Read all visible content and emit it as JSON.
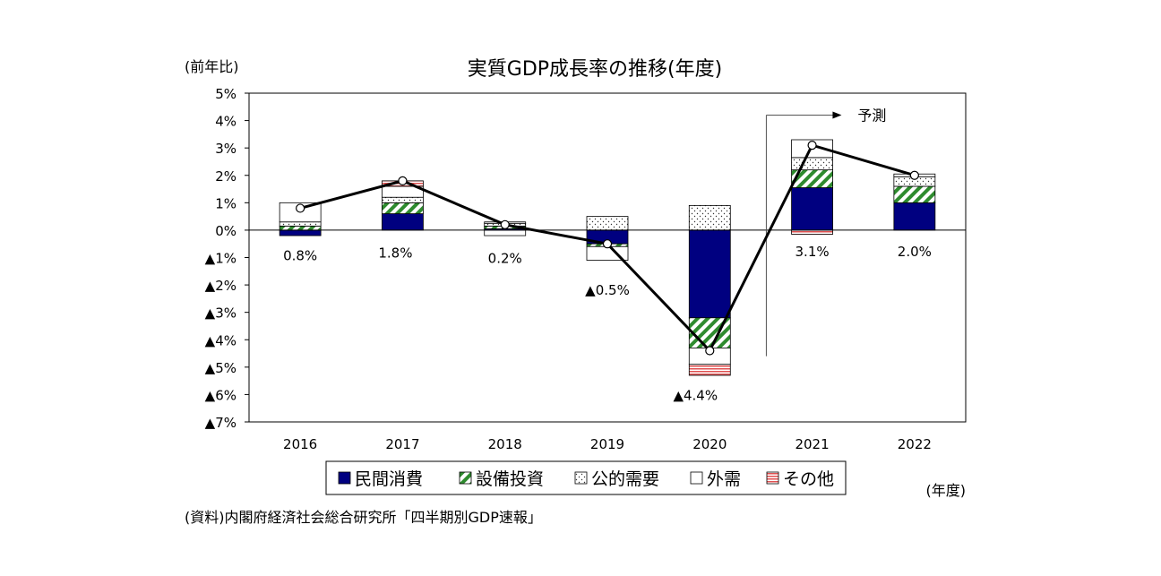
{
  "chart_data": {
    "type": "bar",
    "title": "実質GDP成長率の推移(年度)",
    "ylabel": "(前年比)",
    "xlabel": "(年度)",
    "source": "(資料)内閣府経済社会総合研究所「四半期別GDP速報」",
    "forecast_label": "予測",
    "forecast_from": "2021",
    "ylim": [
      -7,
      5
    ],
    "y_ticks": [
      5,
      4,
      3,
      2,
      1,
      0,
      -1,
      -2,
      -3,
      -4,
      -5,
      -6,
      -7
    ],
    "y_tick_labels": [
      "5%",
      "4%",
      "3%",
      "2%",
      "1%",
      "0%",
      "▲1%",
      "▲2%",
      "▲3%",
      "▲4%",
      "▲5%",
      "▲6%",
      "▲7%"
    ],
    "categories": [
      "2016",
      "2017",
      "2018",
      "2019",
      "2020",
      "2021",
      "2022"
    ],
    "stacked": true,
    "series": [
      {
        "name": "民間消費",
        "color": "#000080",
        "pattern": "solid",
        "values": [
          -0.2,
          0.6,
          0.05,
          -0.5,
          -3.2,
          1.55,
          1.0
        ]
      },
      {
        "name": "設備投資",
        "color": "#2e8b2e",
        "pattern": "diagonal-stripes",
        "values": [
          0.15,
          0.4,
          0.1,
          -0.1,
          -1.1,
          0.65,
          0.6
        ]
      },
      {
        "name": "公的需要",
        "color": "#000000",
        "pattern": "dots",
        "values": [
          0.15,
          0.2,
          0.1,
          0.5,
          0.9,
          0.45,
          0.35
        ]
      },
      {
        "name": "外需",
        "color": "#ffffff",
        "pattern": "blank",
        "values": [
          0.7,
          0.4,
          -0.2,
          -0.5,
          -0.6,
          0.65,
          0.1
        ]
      },
      {
        "name": "その他",
        "color": "#e05050",
        "pattern": "horizontal-stripes",
        "values": [
          0.0,
          0.2,
          0.05,
          0.0,
          -0.4,
          -0.15,
          0.0
        ]
      }
    ],
    "total": {
      "values": [
        0.8,
        1.8,
        0.2,
        -0.5,
        -4.4,
        3.1,
        2.0
      ],
      "labels": [
        "0.8%",
        "1.8%",
        "0.2%",
        "▲0.5%",
        "▲4.4%",
        "3.1%",
        "2.0%"
      ]
    },
    "grid": false,
    "legend_position": "bottom"
  }
}
